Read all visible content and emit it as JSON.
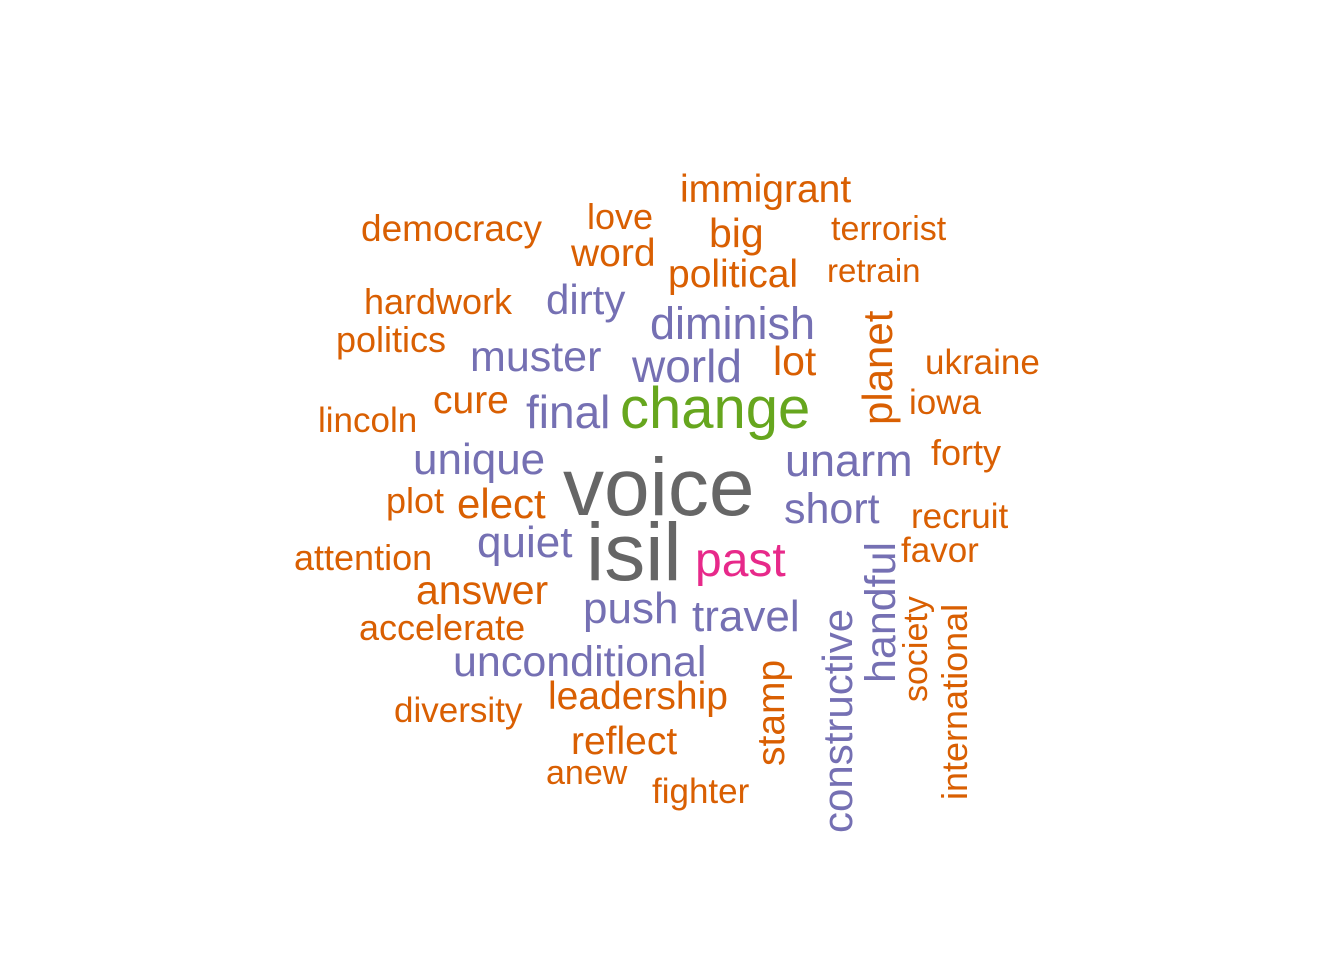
{
  "palette": {
    "orange": "#d95f02",
    "purple": "#7570b3",
    "green": "#66a61e",
    "pink": "#e7298a",
    "gray": "#666666"
  },
  "words": [
    {
      "text": "voice",
      "color": "gray"
    },
    {
      "text": "isil",
      "color": "gray"
    },
    {
      "text": "change",
      "color": "green"
    },
    {
      "text": "past",
      "color": "pink"
    },
    {
      "text": "immigrant",
      "color": "orange"
    },
    {
      "text": "love",
      "color": "orange"
    },
    {
      "text": "democracy",
      "color": "orange"
    },
    {
      "text": "big",
      "color": "orange"
    },
    {
      "text": "terrorist",
      "color": "orange"
    },
    {
      "text": "word",
      "color": "orange"
    },
    {
      "text": "political",
      "color": "orange"
    },
    {
      "text": "retrain",
      "color": "orange"
    },
    {
      "text": "hardwork",
      "color": "orange"
    },
    {
      "text": "dirty",
      "color": "purple"
    },
    {
      "text": "diminish",
      "color": "purple"
    },
    {
      "text": "politics",
      "color": "orange"
    },
    {
      "text": "planet",
      "color": "orange"
    },
    {
      "text": "muster",
      "color": "purple"
    },
    {
      "text": "world",
      "color": "purple"
    },
    {
      "text": "lot",
      "color": "orange"
    },
    {
      "text": "ukraine",
      "color": "orange"
    },
    {
      "text": "cure",
      "color": "orange"
    },
    {
      "text": "iowa",
      "color": "orange"
    },
    {
      "text": "lincoln",
      "color": "orange"
    },
    {
      "text": "final",
      "color": "purple"
    },
    {
      "text": "unique",
      "color": "purple"
    },
    {
      "text": "unarm",
      "color": "purple"
    },
    {
      "text": "forty",
      "color": "orange"
    },
    {
      "text": "plot",
      "color": "orange"
    },
    {
      "text": "elect",
      "color": "orange"
    },
    {
      "text": "short",
      "color": "purple"
    },
    {
      "text": "recruit",
      "color": "orange"
    },
    {
      "text": "quiet",
      "color": "purple"
    },
    {
      "text": "handful",
      "color": "purple"
    },
    {
      "text": "favor",
      "color": "orange"
    },
    {
      "text": "attention",
      "color": "orange"
    },
    {
      "text": "answer",
      "color": "orange"
    },
    {
      "text": "society",
      "color": "orange"
    },
    {
      "text": "push",
      "color": "purple"
    },
    {
      "text": "travel",
      "color": "purple"
    },
    {
      "text": "constructive",
      "color": "purple"
    },
    {
      "text": "international",
      "color": "orange"
    },
    {
      "text": "accelerate",
      "color": "orange"
    },
    {
      "text": "unconditional",
      "color": "purple"
    },
    {
      "text": "stamp",
      "color": "orange"
    },
    {
      "text": "leadership",
      "color": "orange"
    },
    {
      "text": "diversity",
      "color": "orange"
    },
    {
      "text": "reflect",
      "color": "orange"
    },
    {
      "text": "anew",
      "color": "orange"
    },
    {
      "text": "fighter",
      "color": "orange"
    }
  ]
}
